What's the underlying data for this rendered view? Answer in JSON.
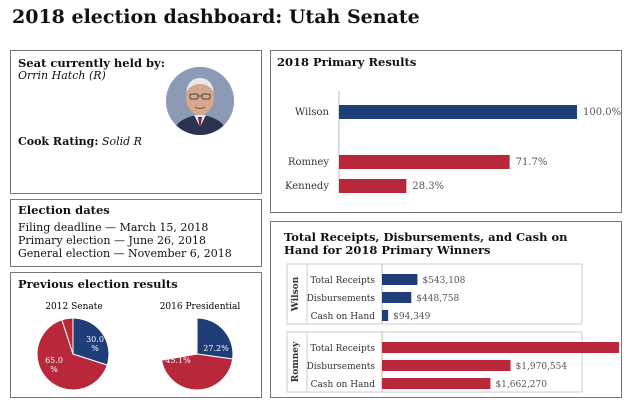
{
  "title": "2018 election dashboard: Utah Senate",
  "colors": {
    "dem": "#1f3e78",
    "rep": "#b8283a",
    "axis": "#bbbbbb"
  },
  "seat": {
    "heading": "Seat currently held by:",
    "holder": "Orrin Hatch (R)",
    "rating_label": "Cook Rating:",
    "rating_value": "Solid R"
  },
  "dates": {
    "heading": "Election dates",
    "lines": [
      "Filing deadline — March 15, 2018",
      "Primary election — June 26, 2018",
      "General election — November 6, 2018"
    ]
  },
  "previous": {
    "heading": "Previous election results",
    "charts": [
      {
        "label": "2012 Senate",
        "dem_label": "30.0\n%",
        "rep_label": "65.0\n%"
      },
      {
        "label": "2016 Presidential",
        "dem_label": "27.2%",
        "rep_label": "45.1%"
      }
    ]
  },
  "primary": {
    "heading": "2018 Primary Results"
  },
  "receipts": {
    "heading_line1": "Total Receipts, Disbursements, and Cash on",
    "heading_line2": "Hand for 2018 Primary Winners"
  },
  "chart_data": [
    {
      "type": "pie",
      "title": "2012 Senate",
      "slices": [
        {
          "label": "30.0%",
          "value": 30.0,
          "color": "#1f3e78"
        },
        {
          "label": "65.0%",
          "value": 65.0,
          "color": "#b8283a"
        },
        {
          "label": "",
          "value": 5.0,
          "color": "#b8283a"
        }
      ]
    },
    {
      "type": "pie",
      "title": "2016 Presidential",
      "slices": [
        {
          "label": "27.2%",
          "value": 27.2,
          "color": "#1f3e78"
        },
        {
          "label": "45.1%",
          "value": 45.1,
          "color": "#b8283a"
        },
        {
          "label": "",
          "value": 27.7,
          "color": "#ffffff"
        }
      ]
    },
    {
      "type": "bar",
      "title": "2018 Primary Results",
      "orientation": "horizontal",
      "xlim": [
        0,
        100
      ],
      "bars": [
        {
          "category": "Wilson",
          "value": 100.0,
          "label": "100.0%",
          "color": "#1f3e78"
        },
        {
          "category": "Romney",
          "value": 71.7,
          "label": "71.7%",
          "color": "#b8283a"
        },
        {
          "category": "Kennedy",
          "value": 28.3,
          "label": "28.3%",
          "color": "#b8283a"
        }
      ]
    },
    {
      "type": "bar",
      "title": "Total Receipts, Disbursements, and Cash on Hand for 2018 Primary Winners",
      "orientation": "horizontal",
      "xlim": [
        0,
        4000000
      ],
      "groups": [
        {
          "name": "Wilson",
          "color": "#1f3e78",
          "bars": [
            {
              "category": "Total Receipts",
              "value": 543108,
              "label": "$543,108"
            },
            {
              "category": "Disbursements",
              "value": 448758,
              "label": "$448,758"
            },
            {
              "category": "Cash on Hand",
              "value": 94349,
              "label": "$94,349"
            }
          ]
        },
        {
          "name": "Romney",
          "color": "#b8283a",
          "bars": [
            {
              "category": "Total Receipts",
              "value": 3632823,
              "label": "$3,632,823"
            },
            {
              "category": "Disbursements",
              "value": 1970554,
              "label": "$1,970,554"
            },
            {
              "category": "Cash on Hand",
              "value": 1662270,
              "label": "$1,662,270"
            }
          ]
        }
      ]
    }
  ]
}
